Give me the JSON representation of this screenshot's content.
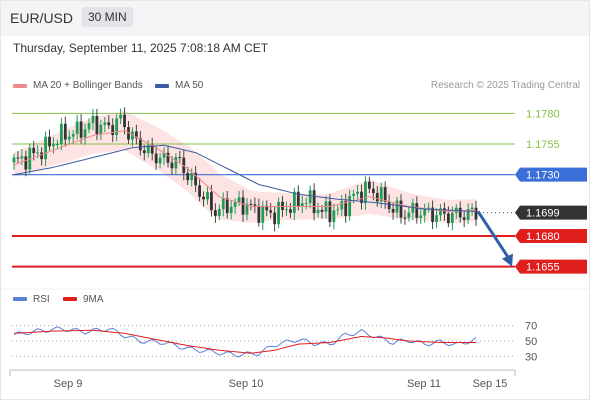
{
  "header": {
    "pair": "EUR/USD",
    "timeframe": "30 MIN"
  },
  "datetime": "Thursday, September 11, 2025 7:08:18 AM CET",
  "legend": {
    "items": [
      {
        "label": "MA 20 + Bollinger Bands",
        "color": "#f08a8a"
      },
      {
        "label": "MA 50",
        "color": "#3b5ba5"
      }
    ],
    "credit": "Research © 2025 Trading Central"
  },
  "colors": {
    "up": "#1f9d55",
    "down": "#444444",
    "green_level": "#86c04a",
    "blue_level": "#3a6fd8",
    "red_level": "#e01e1e",
    "current": "#333333",
    "arrow": "#2f5fa8",
    "rsi": "#5b7fd8",
    "rsi_ma": "#e01e1e",
    "band": "#fde0e0"
  },
  "chart_data": [
    {
      "type": "candlestick",
      "ylim": [
        1.164,
        1.1795
      ],
      "price_levels": [
        {
          "label": "1.1780",
          "value": 1.178,
          "kind": "green"
        },
        {
          "label": "1.1755",
          "value": 1.1755,
          "kind": "green"
        },
        {
          "label": "1.1730",
          "value": 1.173,
          "kind": "blue"
        },
        {
          "label": "1.1699",
          "value": 1.1699,
          "kind": "current"
        },
        {
          "label": "1.1680",
          "value": 1.168,
          "kind": "red"
        },
        {
          "label": "1.1655",
          "value": 1.1655,
          "kind": "red"
        }
      ],
      "projection": {
        "from": 1.17,
        "to": 1.1655
      },
      "price_anchors": [
        [
          0,
          1.174
        ],
        [
          4,
          1.1745
        ],
        [
          8,
          1.1752
        ],
        [
          12,
          1.1762
        ],
        [
          16,
          1.1765
        ],
        [
          20,
          1.1772
        ],
        [
          24,
          1.1768
        ],
        [
          27,
          1.1775
        ],
        [
          30,
          1.176
        ],
        [
          34,
          1.1748
        ],
        [
          38,
          1.1742
        ],
        [
          42,
          1.174
        ],
        [
          45,
          1.1725
        ],
        [
          48,
          1.1712
        ],
        [
          51,
          1.17
        ],
        [
          54,
          1.1705
        ],
        [
          58,
          1.1706
        ],
        [
          62,
          1.17
        ],
        [
          66,
          1.1698
        ],
        [
          70,
          1.1705
        ],
        [
          74,
          1.171
        ],
        [
          78,
          1.17
        ],
        [
          82,
          1.17
        ],
        [
          86,
          1.1712
        ],
        [
          89,
          1.1718
        ],
        [
          92,
          1.1715
        ],
        [
          95,
          1.1705
        ],
        [
          98,
          1.1698
        ],
        [
          102,
          1.17
        ],
        [
          106,
          1.1698
        ],
        [
          110,
          1.1697
        ],
        [
          114,
          1.1698
        ],
        [
          117,
          1.1699
        ]
      ],
      "ma20_anchors": [
        [
          0,
          1.1738
        ],
        [
          10,
          1.175
        ],
        [
          20,
          1.1762
        ],
        [
          28,
          1.1766
        ],
        [
          36,
          1.1752
        ],
        [
          44,
          1.1735
        ],
        [
          52,
          1.1712
        ],
        [
          60,
          1.1704
        ],
        [
          70,
          1.1704
        ],
        [
          80,
          1.1704
        ],
        [
          90,
          1.1712
        ],
        [
          100,
          1.1704
        ],
        [
          110,
          1.17
        ],
        [
          117,
          1.1701
        ]
      ],
      "ma50_anchors": [
        [
          0,
          1.173
        ],
        [
          10,
          1.1736
        ],
        [
          20,
          1.1744
        ],
        [
          30,
          1.1752
        ],
        [
          38,
          1.1754
        ],
        [
          46,
          1.1748
        ],
        [
          54,
          1.1735
        ],
        [
          62,
          1.1722
        ],
        [
          72,
          1.1714
        ],
        [
          82,
          1.171
        ],
        [
          92,
          1.1707
        ],
        [
          104,
          1.1702
        ],
        [
          117,
          1.17
        ]
      ],
      "band_width_anchors": [
        [
          0,
          0.001
        ],
        [
          15,
          0.0014
        ],
        [
          28,
          0.0016
        ],
        [
          40,
          0.0018
        ],
        [
          50,
          0.002
        ],
        [
          62,
          0.0012
        ],
        [
          78,
          0.001
        ],
        [
          90,
          0.0014
        ],
        [
          104,
          0.001
        ],
        [
          117,
          0.0009
        ]
      ]
    },
    {
      "type": "line",
      "name": "RSI",
      "series": [
        {
          "name": "RSI",
          "color": "#5b7fd8"
        },
        {
          "name": "9MA",
          "color": "#e01e1e"
        }
      ],
      "ylim": [
        20,
        80
      ],
      "y_ticks": [
        "70",
        "50",
        "30"
      ],
      "rsi_anchors": [
        [
          0,
          58
        ],
        [
          6,
          63
        ],
        [
          12,
          66
        ],
        [
          18,
          62
        ],
        [
          24,
          66
        ],
        [
          28,
          57
        ],
        [
          32,
          50
        ],
        [
          38,
          48
        ],
        [
          44,
          40
        ],
        [
          50,
          36
        ],
        [
          56,
          32
        ],
        [
          62,
          34
        ],
        [
          66,
          45
        ],
        [
          72,
          52
        ],
        [
          76,
          47
        ],
        [
          80,
          46
        ],
        [
          84,
          58
        ],
        [
          88,
          62
        ],
        [
          92,
          55
        ],
        [
          96,
          48
        ],
        [
          100,
          51
        ],
        [
          104,
          46
        ],
        [
          108,
          49
        ],
        [
          112,
          45
        ],
        [
          117,
          52
        ]
      ],
      "ma9_anchors": [
        [
          0,
          60
        ],
        [
          10,
          63
        ],
        [
          20,
          64
        ],
        [
          28,
          60
        ],
        [
          36,
          52
        ],
        [
          44,
          44
        ],
        [
          52,
          38
        ],
        [
          60,
          34
        ],
        [
          66,
          38
        ],
        [
          72,
          46
        ],
        [
          80,
          48
        ],
        [
          88,
          56
        ],
        [
          94,
          54
        ],
        [
          100,
          50
        ],
        [
          108,
          48
        ],
        [
          117,
          48
        ]
      ]
    }
  ],
  "x_axis": {
    "labels": [
      "Sep 9",
      "Sep 10",
      "Sep 11",
      "Sep 15"
    ]
  }
}
